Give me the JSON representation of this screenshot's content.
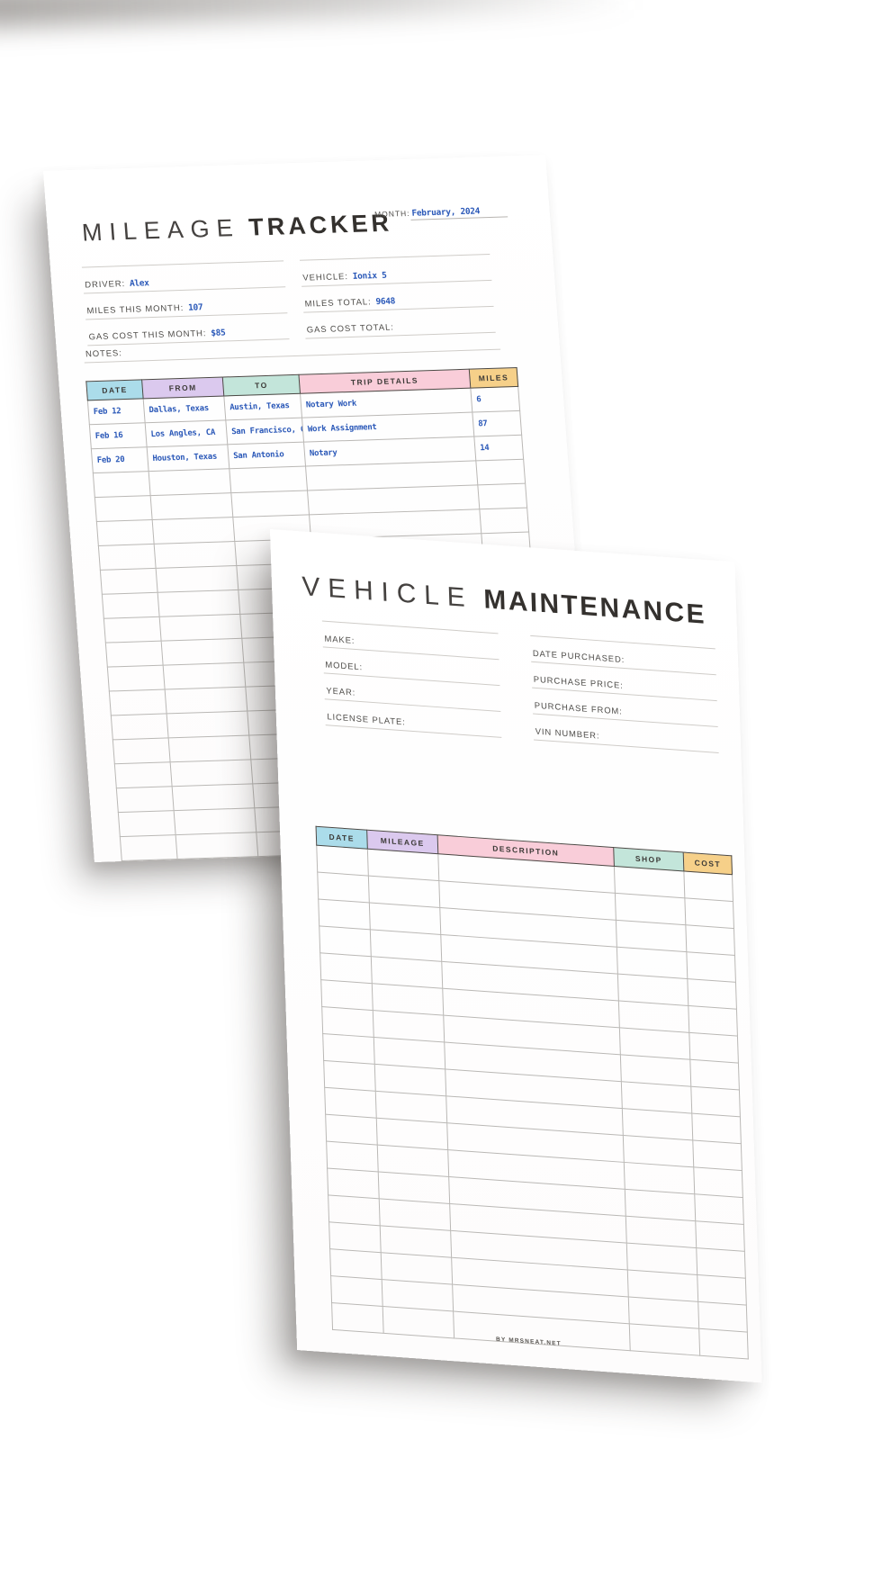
{
  "mileage_tracker": {
    "title": {
      "light": "MILEAGE",
      "bold": "TRACKER"
    },
    "month": {
      "label": "MONTH:",
      "value": "February, 2024"
    },
    "fields_left": [
      {
        "label": "DRIVER:",
        "value": "Alex"
      },
      {
        "label": "MILES THIS MONTH:",
        "value": "107"
      },
      {
        "label": "GAS COST THIS MONTH:",
        "value": "$85"
      }
    ],
    "fields_right": [
      {
        "label": "VEHICLE:",
        "value": "Ionix 5"
      },
      {
        "label": "MILES TOTAL:",
        "value": "9648"
      },
      {
        "label": "GAS COST TOTAL:",
        "value": ""
      }
    ],
    "notes": {
      "label": "NOTES:",
      "value": ""
    },
    "table": {
      "headers": [
        "DATE",
        "FROM",
        "TO",
        "TRIP DETAILS",
        "MILES"
      ],
      "header_colors": [
        "#abdcea",
        "#dbc9ee",
        "#c3e5da",
        "#f9cdd9",
        "#f6d089"
      ],
      "rows": [
        [
          "Feb 12",
          "Dallas, Texas",
          "Austin, Texas",
          "Notary Work",
          "6"
        ],
        [
          "Feb 16",
          "Los Angles, CA",
          "San Francisco, CA",
          "Work Assignment",
          "87"
        ],
        [
          "Feb 20",
          "Houston, Texas",
          "San Antonio",
          "Notary",
          "14"
        ]
      ],
      "empty_rows": 16
    }
  },
  "vehicle_maintenance": {
    "title": {
      "light": "VEHICLE",
      "bold": "MAINTENANCE"
    },
    "fields_left": [
      {
        "label": "MAKE:",
        "value": ""
      },
      {
        "label": "MODEL:",
        "value": ""
      },
      {
        "label": "YEAR:",
        "value": ""
      },
      {
        "label": "LICENSE PLATE:",
        "value": ""
      }
    ],
    "fields_right": [
      {
        "label": "DATE PURCHASED:",
        "value": ""
      },
      {
        "label": "PURCHASE PRICE:",
        "value": ""
      },
      {
        "label": "PURCHASE FROM:",
        "value": ""
      },
      {
        "label": "VIN NUMBER:",
        "value": ""
      }
    ],
    "table": {
      "headers": [
        "DATE",
        "MILEAGE",
        "DESCRIPTION",
        "SHOP",
        "COST"
      ],
      "header_colors": [
        "#abdcea",
        "#dbc9ee",
        "#f9cdd9",
        "#c3e5da",
        "#f6d089"
      ],
      "rows": [],
      "empty_rows": 18
    },
    "footer": "BY MRSNEAT.NET"
  },
  "colors": {
    "ink_blue": "#2a58b8",
    "label_gray": "#4e4c49",
    "header_blue": "#abdcea",
    "header_purple": "#dbc9ee",
    "header_teal": "#c3e5da",
    "header_pink": "#f9cdd9",
    "header_orange": "#f6d089"
  }
}
